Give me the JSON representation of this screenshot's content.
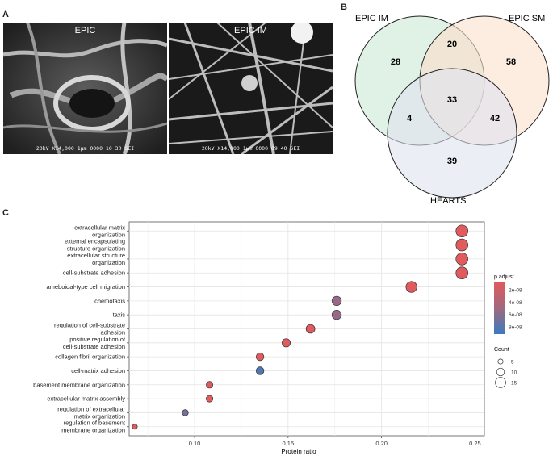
{
  "panels": {
    "a": "A",
    "b": "B",
    "c": "C"
  },
  "sem": [
    {
      "title": "EPIC",
      "scale": "20kV    X14,000     1μm     0000    10 30 SEI"
    },
    {
      "title": "EPIC IM",
      "scale": "20kV    X14,000     1μm     0000    09 40 SEI"
    }
  ],
  "venn": {
    "sets": [
      "EPIC IM",
      "EPIC SM",
      "HEARTS"
    ],
    "colors": [
      "#dbeee2",
      "#fce0cc",
      "#dfe3ef"
    ],
    "counts": {
      "im_only": "28",
      "im_sm": "20",
      "sm_only": "58",
      "all": "33",
      "im_hearts": "4",
      "sm_hearts": "42",
      "hearts_only": "39"
    }
  },
  "chart_data": {
    "type": "scatter",
    "xlabel": "Protein ratio",
    "xlim": [
      0.065,
      0.255
    ],
    "xticks": [
      "0.10",
      "0.15",
      "0.20",
      "0.25"
    ],
    "grid": true,
    "categories": [
      "extracellular matrix organization",
      "external encapsulating structure organization",
      "extracellular structure organization",
      "cell-substrate adhesion",
      "ameboidal-type cell migration",
      "chemotaxis",
      "taxis",
      "regulation of cell-substrate adhesion",
      "positive regulation of cell-substrate adhesion",
      "collagen fibril organization",
      "cell-matrix adhesion",
      "basement membrane organization",
      "extracellular matrix assembly",
      "regulation of extracellular matrix organization",
      "regulation of basement membrane organization"
    ],
    "category_lines": [
      [
        "extracellular matrix",
        "organization"
      ],
      [
        "external encapsulating",
        "structure organization"
      ],
      [
        "extracellular structure",
        "organization"
      ],
      [
        "cell-substrate adhesion"
      ],
      [
        "ameboidal-type cell migration"
      ],
      [
        "chemotaxis"
      ],
      [
        "taxis"
      ],
      [
        "regulation of cell-substrate",
        "adhesion"
      ],
      [
        "positive regulation of",
        "cell-substrate adhesion"
      ],
      [
        "collagen fibril organization"
      ],
      [
        "cell-matrix adhesion"
      ],
      [
        "basement membrane organization"
      ],
      [
        "extracellular matrix assembly"
      ],
      [
        "regulation of extracellular",
        "matrix organization"
      ],
      [
        "regulation of basement",
        "membrane organization"
      ]
    ],
    "x": [
      0.243,
      0.243,
      0.243,
      0.243,
      0.216,
      0.176,
      0.176,
      0.162,
      0.149,
      0.135,
      0.135,
      0.108,
      0.108,
      0.095,
      0.068
    ],
    "count": [
      18,
      18,
      18,
      18,
      16,
      13,
      13,
      12,
      11,
      10,
      10,
      8,
      8,
      7,
      5
    ],
    "p_adjust": [
      1e-09,
      1e-09,
      1e-09,
      1e-09,
      1e-09,
      4e-08,
      4e-08,
      1e-09,
      1e-09,
      1e-09,
      8e-08,
      1e-09,
      1e-09,
      6e-08,
      1e-09
    ],
    "legend_color": {
      "title": "p.adjust",
      "labels": [
        "2e-08",
        "4e-08",
        "6e-08",
        "8e-08"
      ],
      "low": "#e05a5e",
      "high": "#3b7bbf"
    },
    "legend_size": {
      "title": "Count",
      "labels": [
        "5",
        "10",
        "15"
      ],
      "values": [
        5,
        10,
        15
      ]
    }
  }
}
